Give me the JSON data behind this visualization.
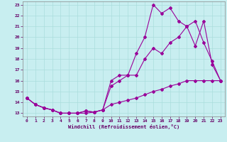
{
  "xlabel": "Windchill (Refroidissement éolien,°C)",
  "bg_color": "#c8eef0",
  "grid_color": "#aadddd",
  "line_color": "#990099",
  "xlim": [
    -0.5,
    23.5
  ],
  "ylim": [
    12.7,
    23.3
  ],
  "yticks": [
    13,
    14,
    15,
    16,
    17,
    18,
    19,
    20,
    21,
    22,
    23
  ],
  "xticks": [
    0,
    1,
    2,
    3,
    4,
    5,
    6,
    7,
    8,
    9,
    10,
    11,
    12,
    13,
    14,
    15,
    16,
    17,
    18,
    19,
    20,
    21,
    22,
    23
  ],
  "line1_x": [
    0,
    1,
    2,
    3,
    4,
    5,
    6,
    7,
    8,
    9,
    10,
    11,
    12,
    13,
    14,
    15,
    16,
    17,
    18,
    19,
    20,
    21,
    22,
    23
  ],
  "line1_y": [
    14.4,
    13.8,
    13.5,
    13.3,
    13.0,
    13.0,
    13.0,
    13.2,
    13.1,
    13.3,
    16.0,
    16.5,
    16.5,
    18.5,
    20.0,
    23.0,
    22.2,
    22.7,
    21.5,
    21.0,
    19.2,
    21.5,
    17.5,
    16.0
  ],
  "line2_x": [
    0,
    1,
    2,
    3,
    4,
    5,
    6,
    7,
    8,
    9,
    10,
    11,
    12,
    13,
    14,
    15,
    16,
    17,
    18,
    19,
    20,
    21,
    22,
    23
  ],
  "line2_y": [
    14.4,
    13.8,
    13.5,
    13.3,
    13.0,
    13.0,
    13.0,
    13.2,
    13.1,
    13.3,
    15.5,
    16.0,
    16.5,
    16.5,
    18.0,
    19.0,
    18.5,
    19.5,
    20.0,
    21.0,
    21.5,
    19.5,
    17.8,
    16.0
  ],
  "line3_x": [
    0,
    1,
    2,
    3,
    4,
    5,
    6,
    7,
    8,
    9,
    10,
    11,
    12,
    13,
    14,
    15,
    16,
    17,
    18,
    19,
    20,
    21,
    22,
    23
  ],
  "line3_y": [
    14.4,
    13.8,
    13.5,
    13.3,
    13.0,
    13.0,
    13.0,
    13.0,
    13.1,
    13.3,
    13.8,
    14.0,
    14.2,
    14.4,
    14.7,
    15.0,
    15.2,
    15.5,
    15.7,
    16.0,
    16.0,
    16.0,
    16.0,
    16.0
  ]
}
